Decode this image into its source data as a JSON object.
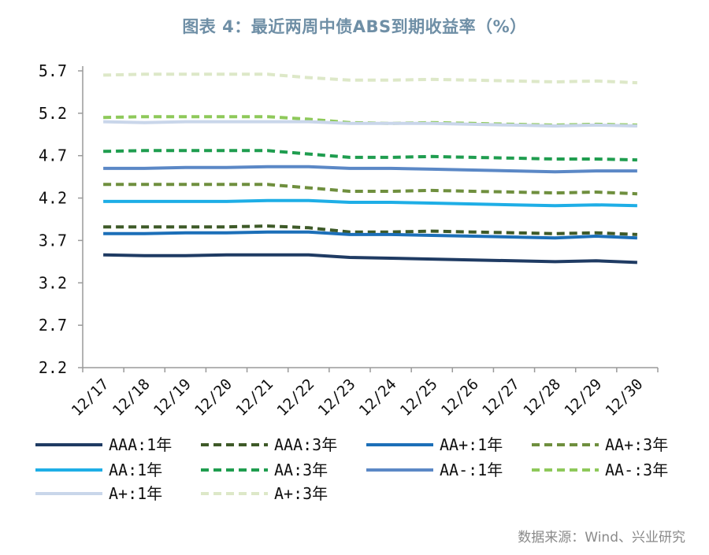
{
  "title": "图表 4：最近两周中债ABS到期收益率（%）",
  "source": "数据来源：Wind、兴业研究",
  "chart_data": {
    "type": "line",
    "title": "图表 4：最近两周中债ABS到期收益率（%）",
    "categories": [
      "12/17",
      "12/18",
      "12/19",
      "12/20",
      "12/21",
      "12/22",
      "12/23",
      "12/24",
      "12/25",
      "12/26",
      "12/27",
      "12/28",
      "12/29",
      "12/30"
    ],
    "ylim": [
      2.2,
      5.7
    ],
    "yticks": [
      "2.2",
      "2.7",
      "3.2",
      "3.7",
      "4.2",
      "4.7",
      "5.2",
      "5.7"
    ],
    "grid": false,
    "legend_position": "bottom",
    "series": [
      {
        "name": "AAA:1年",
        "color": "#1f3b63",
        "dash": "solid",
        "values": [
          3.53,
          3.52,
          3.52,
          3.53,
          3.53,
          3.53,
          3.5,
          3.49,
          3.48,
          3.47,
          3.46,
          3.45,
          3.46,
          3.44
        ]
      },
      {
        "name": "AAA:3年",
        "color": "#3e5a28",
        "dash": "dashed",
        "values": [
          3.86,
          3.86,
          3.86,
          3.86,
          3.87,
          3.85,
          3.8,
          3.8,
          3.81,
          3.8,
          3.79,
          3.78,
          3.79,
          3.77
        ]
      },
      {
        "name": "AA+:1年",
        "color": "#1c6fb8",
        "dash": "solid",
        "values": [
          3.78,
          3.78,
          3.79,
          3.79,
          3.8,
          3.8,
          3.77,
          3.77,
          3.76,
          3.75,
          3.74,
          3.73,
          3.75,
          3.73
        ]
      },
      {
        "name": "AA+:3年",
        "color": "#6f8f3e",
        "dash": "dashed",
        "values": [
          4.36,
          4.36,
          4.36,
          4.36,
          4.36,
          4.32,
          4.28,
          4.28,
          4.29,
          4.28,
          4.27,
          4.26,
          4.27,
          4.25
        ]
      },
      {
        "name": "AA:1年",
        "color": "#1eaee6",
        "dash": "solid",
        "values": [
          4.16,
          4.16,
          4.16,
          4.16,
          4.17,
          4.17,
          4.15,
          4.15,
          4.14,
          4.13,
          4.12,
          4.11,
          4.12,
          4.11
        ]
      },
      {
        "name": "AA:3年",
        "color": "#1f9d4f",
        "dash": "dashed",
        "values": [
          4.75,
          4.76,
          4.76,
          4.76,
          4.76,
          4.72,
          4.68,
          4.68,
          4.69,
          4.68,
          4.67,
          4.66,
          4.66,
          4.65
        ]
      },
      {
        "name": "AA-:1年",
        "color": "#5b88c6",
        "dash": "solid",
        "values": [
          4.55,
          4.55,
          4.56,
          4.56,
          4.57,
          4.57,
          4.55,
          4.55,
          4.54,
          4.53,
          4.52,
          4.51,
          4.52,
          4.52
        ]
      },
      {
        "name": "AA-:3年",
        "color": "#8ec95a",
        "dash": "dashed",
        "values": [
          5.15,
          5.16,
          5.16,
          5.16,
          5.16,
          5.13,
          5.09,
          5.08,
          5.09,
          5.08,
          5.07,
          5.06,
          5.07,
          5.06
        ]
      },
      {
        "name": "A+:1年",
        "color": "#c9d6ea",
        "dash": "solid",
        "values": [
          5.1,
          5.09,
          5.1,
          5.1,
          5.1,
          5.1,
          5.08,
          5.08,
          5.08,
          5.07,
          5.06,
          5.05,
          5.06,
          5.05
        ]
      },
      {
        "name": "A+:3年",
        "color": "#dde8c8",
        "dash": "dashed",
        "values": [
          5.65,
          5.66,
          5.66,
          5.66,
          5.66,
          5.62,
          5.59,
          5.59,
          5.6,
          5.59,
          5.58,
          5.57,
          5.58,
          5.56
        ]
      }
    ]
  }
}
